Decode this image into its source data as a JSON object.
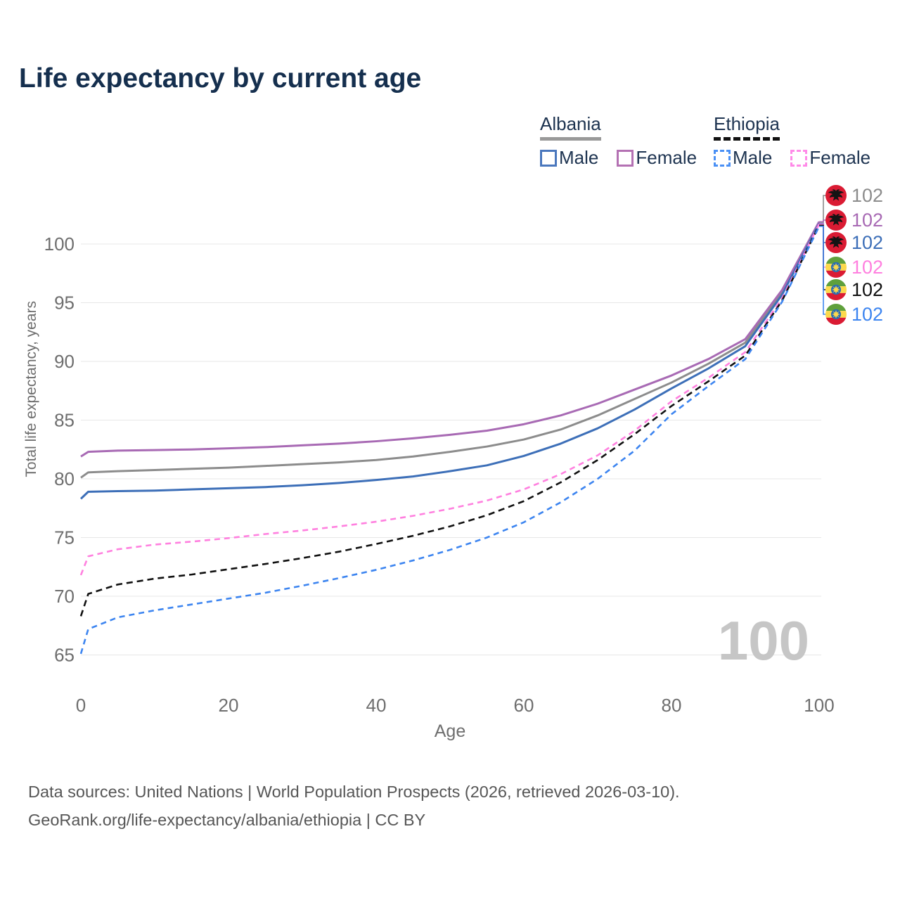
{
  "title": "Life expectancy by current age",
  "legend": {
    "groups": [
      {
        "name": "Albania",
        "line_color": "#999999",
        "line_style": "solid",
        "items": [
          {
            "label": "Male",
            "color": "#4a77bd",
            "dashed": false
          },
          {
            "label": "Female",
            "color": "#b471b3",
            "dashed": false
          }
        ]
      },
      {
        "name": "Ethiopia",
        "line_color": "#111111",
        "line_style": "dashed",
        "items": [
          {
            "label": "Male",
            "color": "#4a90f5",
            "dashed": true
          },
          {
            "label": "Female",
            "color": "#ff8ae8",
            "dashed": true
          }
        ]
      }
    ]
  },
  "watermark": "100",
  "footer": {
    "line1": "Data sources: United Nations | World Population Prospects (2026, retrieved 2026-03-10).",
    "line2": "GeoRank.org/life-expectancy/albania/ethiopia | CC BY"
  },
  "chart_data": {
    "type": "line",
    "title": "Life expectancy by current age",
    "xlabel": "Age",
    "ylabel": "Total life expectancy, years",
    "xlim": [
      0,
      100
    ],
    "ylim": [
      65,
      102
    ],
    "xticks": [
      0,
      20,
      40,
      60,
      80,
      100
    ],
    "yticks": [
      65,
      70,
      75,
      80,
      85,
      90,
      95,
      100
    ],
    "grid": "horizontal",
    "grid_color": "#e7e7e7",
    "x": [
      0,
      1,
      5,
      10,
      15,
      20,
      25,
      30,
      35,
      40,
      45,
      50,
      55,
      60,
      65,
      70,
      75,
      80,
      85,
      90,
      95,
      100
    ],
    "series": [
      {
        "id": "albania-both",
        "name": "Albania",
        "color": "#8c8c8c",
        "dashed": false,
        "values": [
          80.1,
          80.55,
          80.65,
          80.75,
          80.85,
          80.95,
          81.1,
          81.25,
          81.4,
          81.6,
          81.9,
          82.3,
          82.75,
          83.35,
          84.2,
          85.4,
          86.8,
          88.2,
          89.8,
          91.6,
          95.9,
          101.85
        ]
      },
      {
        "id": "albania-female",
        "name": "Albania Female",
        "color": "#a86ab4",
        "dashed": false,
        "values": [
          81.9,
          82.3,
          82.4,
          82.45,
          82.5,
          82.6,
          82.7,
          82.85,
          83.0,
          83.2,
          83.45,
          83.75,
          84.1,
          84.65,
          85.4,
          86.4,
          87.6,
          88.8,
          90.2,
          91.9,
          96.1,
          101.9
        ]
      },
      {
        "id": "albania-male",
        "name": "Albania Male",
        "color": "#3d6fb8",
        "dashed": false,
        "values": [
          78.3,
          78.9,
          78.95,
          79.0,
          79.1,
          79.2,
          79.3,
          79.45,
          79.65,
          79.9,
          80.2,
          80.65,
          81.15,
          81.95,
          83.0,
          84.3,
          85.9,
          87.7,
          89.4,
          91.3,
          95.7,
          101.75
        ]
      },
      {
        "id": "ethiopia-female",
        "name": "Ethiopia Female",
        "color": "#ff80df",
        "dashed": true,
        "dash": "8 6",
        "values": [
          71.8,
          73.4,
          74.0,
          74.4,
          74.65,
          74.95,
          75.3,
          75.6,
          75.95,
          76.35,
          76.85,
          77.45,
          78.15,
          79.1,
          80.4,
          82.0,
          84.1,
          86.6,
          88.6,
          90.8,
          95.4,
          101.7
        ]
      },
      {
        "id": "ethiopia-both",
        "name": "Ethiopia",
        "color": "#111111",
        "dashed": true,
        "dash": "9 6",
        "values": [
          68.3,
          70.2,
          71.0,
          71.5,
          71.85,
          72.3,
          72.75,
          73.25,
          73.8,
          74.45,
          75.15,
          75.95,
          76.9,
          78.1,
          79.7,
          81.6,
          83.8,
          86.2,
          88.3,
          90.5,
          95.2,
          101.6
        ]
      },
      {
        "id": "ethiopia-male",
        "name": "Ethiopia Male",
        "color": "#3d85f0",
        "dashed": true,
        "dash": "8 6",
        "values": [
          65.1,
          67.2,
          68.2,
          68.8,
          69.3,
          69.8,
          70.3,
          70.9,
          71.55,
          72.25,
          73.05,
          73.95,
          75.0,
          76.3,
          78.0,
          80.0,
          82.4,
          85.5,
          87.9,
          90.2,
          95.1,
          101.5
        ]
      }
    ],
    "end_labels": [
      {
        "country": "Albania",
        "flag": "albania",
        "value": "102",
        "color": "#8c8c8c"
      },
      {
        "country": "Albania",
        "flag": "albania",
        "value": "102",
        "color": "#a86ab4"
      },
      {
        "country": "Albania",
        "flag": "albania",
        "value": "102",
        "color": "#3d6fb8"
      },
      {
        "country": "Ethiopia",
        "flag": "ethiopia",
        "value": "102",
        "color": "#ff80df"
      },
      {
        "country": "Ethiopia",
        "flag": "ethiopia",
        "value": "102",
        "color": "#111111"
      },
      {
        "country": "Ethiopia",
        "flag": "ethiopia",
        "value": "102",
        "color": "#3d85f0"
      }
    ],
    "legend_position": "top-right"
  }
}
